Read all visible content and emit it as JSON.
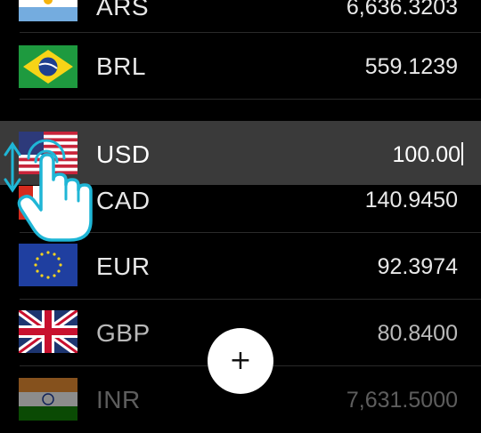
{
  "currencies": [
    {
      "code": "ARS",
      "amount": "6,636.3203"
    },
    {
      "code": "BRL",
      "amount": "559.1239"
    },
    {
      "code": "USD",
      "amount": "100.00"
    },
    {
      "code": "CAD",
      "amount": "140.9450"
    },
    {
      "code": "EUR",
      "amount": "92.3974"
    },
    {
      "code": "GBP",
      "amount": "80.8400"
    },
    {
      "code": "INR",
      "amount": "7,631.5000"
    }
  ],
  "fab": {
    "label": "+"
  },
  "colors": {
    "background": "#000000",
    "active_row": "#3a3a3a",
    "hand_outline": "#1fb6d6",
    "fab": "#ffffff"
  }
}
